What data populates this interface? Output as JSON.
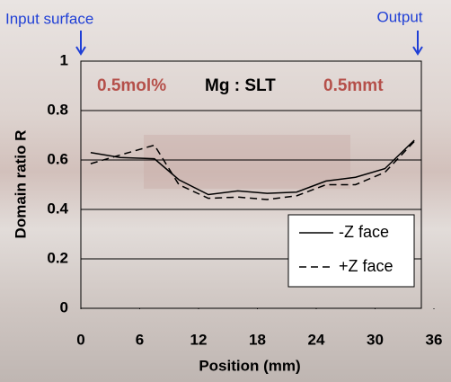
{
  "chart_data": {
    "type": "line",
    "annotations": {
      "input": "Input surface",
      "output": "Output",
      "composition": "0.5mol%",
      "material": "Mg : SLT",
      "thickness": "0.5mmt"
    },
    "xlabel": "Position (mm)",
    "ylabel": "Domain ratio R",
    "x": [
      1,
      4,
      7.5,
      10,
      13,
      16,
      19,
      22,
      25,
      28,
      31,
      34
    ],
    "series": [
      {
        "name": "-Z face",
        "color": "#000000",
        "dash": false,
        "values": [
          0.63,
          0.61,
          0.605,
          0.52,
          0.46,
          0.475,
          0.465,
          0.47,
          0.515,
          0.53,
          0.565,
          0.68
        ]
      },
      {
        "name": "+Z face",
        "color": "#000000",
        "dash": true,
        "values": [
          0.585,
          0.62,
          0.66,
          0.5,
          0.445,
          0.45,
          0.44,
          0.455,
          0.5,
          0.5,
          0.55,
          0.675
        ]
      }
    ],
    "xlim": [
      0,
      36
    ],
    "xticks": [
      0,
      6,
      12,
      18,
      24,
      30,
      36
    ],
    "ylim": [
      0,
      1
    ],
    "yticks": [
      0,
      0.2,
      0.4,
      0.6,
      0.8,
      1
    ],
    "grid": true,
    "legend": "lower right"
  }
}
